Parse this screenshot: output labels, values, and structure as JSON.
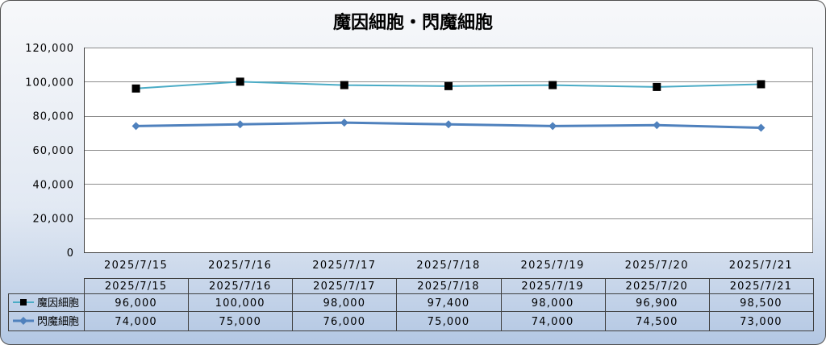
{
  "chart_data": {
    "type": "line",
    "title": "魔因細胞・閃魔細胞",
    "categories": [
      "2025/7/15",
      "2025/7/16",
      "2025/7/17",
      "2025/7/18",
      "2025/7/19",
      "2025/7/20",
      "2025/7/21"
    ],
    "ylim": [
      0,
      120000
    ],
    "yticks": [
      0,
      20000,
      40000,
      60000,
      80000,
      100000,
      120000
    ],
    "ytick_labels": [
      "0",
      "20,000",
      "40,000",
      "60,000",
      "80,000",
      "100,000",
      "120,000"
    ],
    "grid": true,
    "legend": "data-table",
    "series": [
      {
        "name": "魔因細胞",
        "values": [
          96000,
          100000,
          98000,
          97400,
          98000,
          96900,
          98500
        ],
        "value_labels": [
          "96,000",
          "100,000",
          "98,000",
          "97,400",
          "98,000",
          "96,900",
          "98,500"
        ],
        "line_color": "#4bacc6",
        "marker": "square",
        "marker_color": "#000000"
      },
      {
        "name": "閃魔細胞",
        "values": [
          74000,
          75000,
          76000,
          75000,
          74000,
          74500,
          73000
        ],
        "value_labels": [
          "74,000",
          "75,000",
          "76,000",
          "75,000",
          "74,000",
          "74,500",
          "73,000"
        ],
        "line_color": "#4f81bd",
        "marker": "diamond",
        "marker_color": "#4f81bd"
      }
    ]
  },
  "colors": {
    "background_top": "#f7f8fa",
    "background_mid": "#e2e9f3",
    "background_bottom": "#b3c7e3",
    "plot_background": "#ffffff",
    "gridline": "#8c8c8c",
    "border": "#505050"
  }
}
